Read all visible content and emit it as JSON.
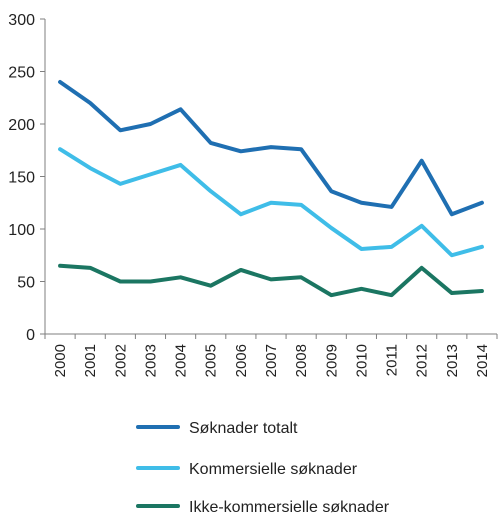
{
  "chart_data": {
    "type": "line",
    "x": [
      "2000",
      "2001",
      "2002",
      "2003",
      "2004",
      "2005",
      "2006",
      "2007",
      "2008",
      "2009",
      "2010",
      "2011",
      "2012",
      "2013",
      "2014"
    ],
    "ylim": [
      0,
      300
    ],
    "yticks": [
      0,
      50,
      100,
      150,
      200,
      250,
      300
    ],
    "grid": false,
    "legend": "bottom",
    "series": [
      {
        "name": "Søknader totalt",
        "color": "#1f6fb2",
        "values": [
          240,
          220,
          194,
          200,
          214,
          182,
          174,
          178,
          176,
          136,
          125,
          121,
          165,
          114,
          125
        ]
      },
      {
        "name": "Kommersielle søknader",
        "color": "#3fbde8",
        "values": [
          176,
          158,
          143,
          152,
          161,
          136,
          114,
          125,
          123,
          101,
          81,
          83,
          103,
          75,
          83
        ]
      },
      {
        "name": "Ikke-kommersielle søknader",
        "color": "#1b7662",
        "values": [
          65,
          63,
          50,
          50,
          54,
          46,
          61,
          52,
          54,
          37,
          43,
          37,
          63,
          39,
          41
        ]
      }
    ]
  }
}
